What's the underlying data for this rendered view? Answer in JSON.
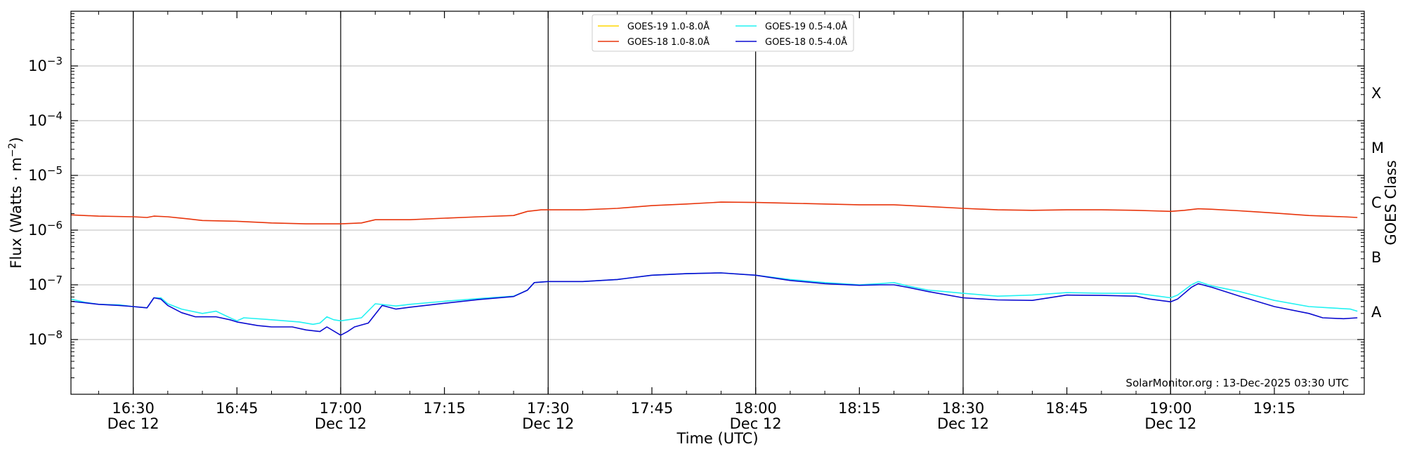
{
  "chart_data": {
    "type": "line",
    "xlabel": "Time (UTC)",
    "ylabel": "Flux (Watts · m",
    "ylabel_exponent": "−2",
    "ylabel_close": ")",
    "right_label": "GOES Class",
    "credit": "SolarMonitor.org : 13-Dec-2025 03:30 UTC",
    "x_range": [
      "16:21",
      "19:28"
    ],
    "y_scale": "log",
    "ylim": [
      1e-09,
      0.01
    ],
    "grid": "horizontal",
    "legend_position": "top-center",
    "time_ticks": [
      {
        "time": "16:30",
        "date": "Dec 12",
        "vline": true
      },
      {
        "time": "16:45",
        "date": "",
        "vline": false
      },
      {
        "time": "17:00",
        "date": "Dec 12",
        "vline": true
      },
      {
        "time": "17:15",
        "date": "",
        "vline": false
      },
      {
        "time": "17:30",
        "date": "Dec 12",
        "vline": true
      },
      {
        "time": "17:45",
        "date": "",
        "vline": false
      },
      {
        "time": "18:00",
        "date": "Dec 12",
        "vline": true
      },
      {
        "time": "18:15",
        "date": "",
        "vline": false
      },
      {
        "time": "18:30",
        "date": "Dec 12",
        "vline": true
      },
      {
        "time": "18:45",
        "date": "",
        "vline": false
      },
      {
        "time": "19:00",
        "date": "Dec 12",
        "vline": true
      },
      {
        "time": "19:15",
        "date": "",
        "vline": false
      }
    ],
    "y_ticks": [
      {
        "exp": -8,
        "base": "10",
        "sup": "−8"
      },
      {
        "exp": -7,
        "base": "10",
        "sup": "−7"
      },
      {
        "exp": -6,
        "base": "10",
        "sup": "−6"
      },
      {
        "exp": -5,
        "base": "10",
        "sup": "−5"
      },
      {
        "exp": -4,
        "base": "10",
        "sup": "−4"
      },
      {
        "exp": -3,
        "base": "10",
        "sup": "−3"
      }
    ],
    "goes_classes": [
      {
        "label": "A",
        "exp": -7.5
      },
      {
        "label": "B",
        "exp": -6.5
      },
      {
        "label": "C",
        "exp": -5.5
      },
      {
        "label": "M",
        "exp": -4.5
      },
      {
        "label": "X",
        "exp": -3.5
      }
    ],
    "series": [
      {
        "name": "GOES-19 1.0-8.0Å",
        "color": "#FFD700",
        "points": []
      },
      {
        "name": "GOES-18 1.0-8.0Å",
        "color": "#E8350C",
        "points": [
          [
            "16:21",
            1.9e-06
          ],
          [
            "16:25",
            1.8e-06
          ],
          [
            "16:30",
            1.75e-06
          ],
          [
            "16:32",
            1.7e-06
          ],
          [
            "16:33",
            1.8e-06
          ],
          [
            "16:35",
            1.75e-06
          ],
          [
            "16:38",
            1.6e-06
          ],
          [
            "16:40",
            1.5e-06
          ],
          [
            "16:45",
            1.45e-06
          ],
          [
            "16:50",
            1.35e-06
          ],
          [
            "16:55",
            1.3e-06
          ],
          [
            "16:58",
            1.3e-06
          ],
          [
            "17:00",
            1.3e-06
          ],
          [
            "17:03",
            1.35e-06
          ],
          [
            "17:05",
            1.55e-06
          ],
          [
            "17:10",
            1.55e-06
          ],
          [
            "17:15",
            1.65e-06
          ],
          [
            "17:20",
            1.75e-06
          ],
          [
            "17:25",
            1.85e-06
          ],
          [
            "17:27",
            2.2e-06
          ],
          [
            "17:29",
            2.35e-06
          ],
          [
            "17:35",
            2.35e-06
          ],
          [
            "17:40",
            2.5e-06
          ],
          [
            "17:45",
            2.8e-06
          ],
          [
            "17:50",
            3e-06
          ],
          [
            "17:55",
            3.25e-06
          ],
          [
            "18:00",
            3.2e-06
          ],
          [
            "18:05",
            3.1e-06
          ],
          [
            "18:10",
            3e-06
          ],
          [
            "18:15",
            2.9e-06
          ],
          [
            "18:20",
            2.9e-06
          ],
          [
            "18:25",
            2.7e-06
          ],
          [
            "18:30",
            2.5e-06
          ],
          [
            "18:35",
            2.35e-06
          ],
          [
            "18:40",
            2.3e-06
          ],
          [
            "18:45",
            2.35e-06
          ],
          [
            "18:50",
            2.35e-06
          ],
          [
            "18:55",
            2.3e-06
          ],
          [
            "19:00",
            2.2e-06
          ],
          [
            "19:02",
            2.3e-06
          ],
          [
            "19:04",
            2.45e-06
          ],
          [
            "19:06",
            2.4e-06
          ],
          [
            "19:10",
            2.25e-06
          ],
          [
            "19:15",
            2.05e-06
          ],
          [
            "19:20",
            1.85e-06
          ],
          [
            "19:25",
            1.75e-06
          ],
          [
            "19:27",
            1.7e-06
          ]
        ]
      },
      {
        "name": "GOES-19 0.5-4.0Å",
        "color": "#22F2F2",
        "points": [
          [
            "16:21",
            5.5e-08
          ],
          [
            "16:23",
            4.8e-08
          ],
          [
            "16:25",
            4.4e-08
          ],
          [
            "16:28",
            4.3e-08
          ],
          [
            "16:30",
            4e-08
          ],
          [
            "16:32",
            3.8e-08
          ],
          [
            "16:33",
            5.8e-08
          ],
          [
            "16:34",
            5.8e-08
          ],
          [
            "16:35",
            4.5e-08
          ],
          [
            "16:37",
            3.6e-08
          ],
          [
            "16:40",
            3e-08
          ],
          [
            "16:42",
            3.3e-08
          ],
          [
            "16:44",
            2.5e-08
          ],
          [
            "16:45",
            2.2e-08
          ],
          [
            "16:46",
            2.5e-08
          ],
          [
            "16:50",
            2.3e-08
          ],
          [
            "16:54",
            2.1e-08
          ],
          [
            "16:56",
            1.9e-08
          ],
          [
            "16:57",
            2e-08
          ],
          [
            "16:58",
            2.6e-08
          ],
          [
            "16:59",
            2.3e-08
          ],
          [
            "17:00",
            2.2e-08
          ],
          [
            "17:03",
            2.5e-08
          ],
          [
            "17:05",
            4.5e-08
          ],
          [
            "17:08",
            4.1e-08
          ],
          [
            "17:10",
            4.4e-08
          ],
          [
            "17:15",
            5e-08
          ],
          [
            "17:20",
            5.6e-08
          ],
          [
            "17:25",
            6.2e-08
          ],
          [
            "17:27",
            8e-08
          ],
          [
            "17:28",
            1.1e-07
          ],
          [
            "17:30",
            1.15e-07
          ],
          [
            "17:35",
            1.15e-07
          ],
          [
            "17:40",
            1.25e-07
          ],
          [
            "17:45",
            1.5e-07
          ],
          [
            "17:50",
            1.6e-07
          ],
          [
            "17:55",
            1.65e-07
          ],
          [
            "18:00",
            1.5e-07
          ],
          [
            "18:05",
            1.25e-07
          ],
          [
            "18:10",
            1.1e-07
          ],
          [
            "18:15",
            1e-07
          ],
          [
            "18:18",
            1.05e-07
          ],
          [
            "18:20",
            1.1e-07
          ],
          [
            "18:22",
            9.5e-08
          ],
          [
            "18:25",
            8e-08
          ],
          [
            "18:30",
            7e-08
          ],
          [
            "18:35",
            6.2e-08
          ],
          [
            "18:40",
            6.5e-08
          ],
          [
            "18:45",
            7.2e-08
          ],
          [
            "18:50",
            7e-08
          ],
          [
            "18:55",
            7e-08
          ],
          [
            "18:57",
            6.5e-08
          ],
          [
            "19:00",
            5.8e-08
          ],
          [
            "19:01",
            6.5e-08
          ],
          [
            "19:03",
            1e-07
          ],
          [
            "19:04",
            1.15e-07
          ],
          [
            "19:06",
            9.5e-08
          ],
          [
            "19:10",
            7.5e-08
          ],
          [
            "19:15",
            5.2e-08
          ],
          [
            "19:20",
            4e-08
          ],
          [
            "19:23",
            3.8e-08
          ],
          [
            "19:26",
            3.6e-08
          ],
          [
            "19:27",
            3.3e-08
          ]
        ]
      },
      {
        "name": "GOES-18 0.5-4.0Å",
        "color": "#0A0AD0",
        "points": [
          [
            "16:21",
            5e-08
          ],
          [
            "16:23",
            4.7e-08
          ],
          [
            "16:25",
            4.4e-08
          ],
          [
            "16:28",
            4.2e-08
          ],
          [
            "16:30",
            4e-08
          ],
          [
            "16:32",
            3.8e-08
          ],
          [
            "16:33",
            5.8e-08
          ],
          [
            "16:34",
            5.5e-08
          ],
          [
            "16:35",
            4.2e-08
          ],
          [
            "16:37",
            3.1e-08
          ],
          [
            "16:39",
            2.6e-08
          ],
          [
            "16:42",
            2.6e-08
          ],
          [
            "16:44",
            2.3e-08
          ],
          [
            "16:45",
            2.1e-08
          ],
          [
            "16:48",
            1.8e-08
          ],
          [
            "16:50",
            1.7e-08
          ],
          [
            "16:53",
            1.7e-08
          ],
          [
            "16:55",
            1.5e-08
          ],
          [
            "16:57",
            1.4e-08
          ],
          [
            "16:58",
            1.7e-08
          ],
          [
            "17:00",
            1.2e-08
          ],
          [
            "17:01",
            1.4e-08
          ],
          [
            "17:02",
            1.7e-08
          ],
          [
            "17:04",
            2e-08
          ],
          [
            "17:06",
            4.2e-08
          ],
          [
            "17:08",
            3.6e-08
          ],
          [
            "17:10",
            3.9e-08
          ],
          [
            "17:15",
            4.6e-08
          ],
          [
            "17:20",
            5.4e-08
          ],
          [
            "17:25",
            6.1e-08
          ],
          [
            "17:27",
            8e-08
          ],
          [
            "17:28",
            1.1e-07
          ],
          [
            "17:30",
            1.15e-07
          ],
          [
            "17:35",
            1.15e-07
          ],
          [
            "17:40",
            1.25e-07
          ],
          [
            "17:45",
            1.5e-07
          ],
          [
            "17:50",
            1.6e-07
          ],
          [
            "17:55",
            1.65e-07
          ],
          [
            "18:00",
            1.5e-07
          ],
          [
            "18:05",
            1.2e-07
          ],
          [
            "18:10",
            1.05e-07
          ],
          [
            "18:15",
            9.8e-08
          ],
          [
            "18:18",
            1e-07
          ],
          [
            "18:20",
            1e-07
          ],
          [
            "18:22",
            9e-08
          ],
          [
            "18:25",
            7.5e-08
          ],
          [
            "18:30",
            5.8e-08
          ],
          [
            "18:35",
            5.3e-08
          ],
          [
            "18:40",
            5.2e-08
          ],
          [
            "18:45",
            6.5e-08
          ],
          [
            "18:50",
            6.4e-08
          ],
          [
            "18:55",
            6.2e-08
          ],
          [
            "18:57",
            5.5e-08
          ],
          [
            "19:00",
            4.9e-08
          ],
          [
            "19:01",
            5.5e-08
          ],
          [
            "19:03",
            9e-08
          ],
          [
            "19:04",
            1.05e-07
          ],
          [
            "19:06",
            9e-08
          ],
          [
            "19:10",
            6.2e-08
          ],
          [
            "19:15",
            4e-08
          ],
          [
            "19:20",
            3e-08
          ],
          [
            "19:22",
            2.5e-08
          ],
          [
            "19:25",
            2.4e-08
          ],
          [
            "19:27",
            2.5e-08
          ]
        ]
      }
    ]
  }
}
